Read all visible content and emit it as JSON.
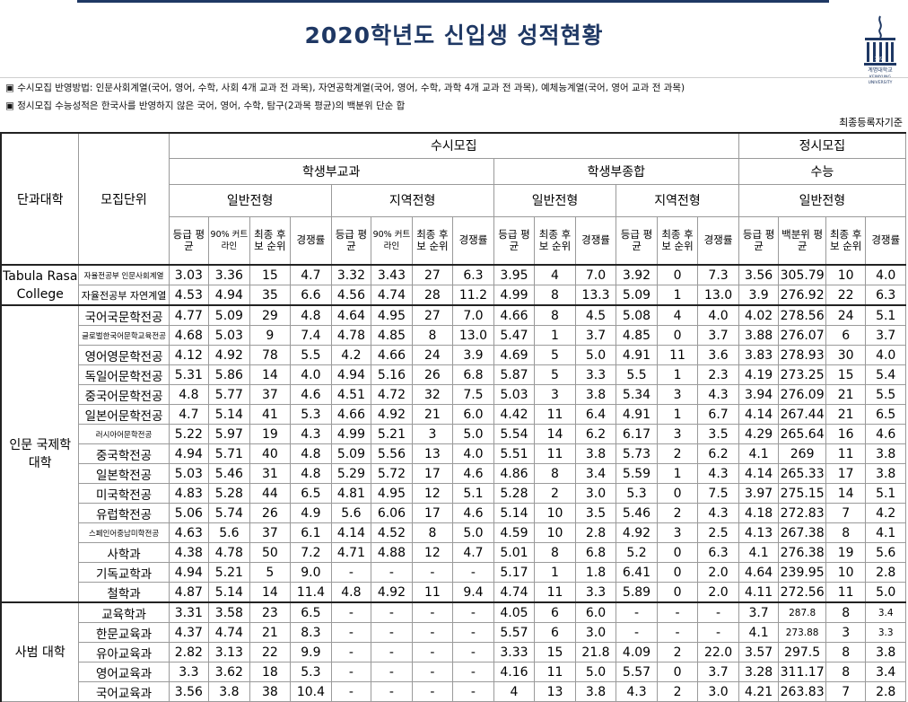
{
  "page": {
    "title": "2020학년도 신입생 성적현황",
    "logo_text": [
      "1899",
      "계명대학교",
      "KEIMYUNG",
      "UNIVERSITY"
    ],
    "notes": [
      "▣ 수시모집 반영방법: 인문사회계열(국어, 영어, 수학, 사회 4개 교과 전 과목), 자연공학계열(국어, 영어, 수학, 과학 4개 교과 전 과목), 예체능계열(국어, 영어 교과 전 과목)",
      "▣ 정시모집 수능성적은 한국사를 반영하지 않은 국어, 영어, 수학, 탐구(2과목 평균)의 백분위 단순 합"
    ],
    "basis": "최종등록자기준"
  },
  "header": {
    "college": "단과대학",
    "unit": "모집단위",
    "susi": "수시모집",
    "jeongsi": "정시모집",
    "hakbu_gyogwa": "학생부교과",
    "hakbu_jonghap": "학생부종합",
    "suneung": "수능",
    "ilban": "일반전형",
    "jiyeok": "지역전형",
    "grade_avg": "등급 평균",
    "cutline90": "90% 커트라인",
    "final_rank": "최종 후보 순위",
    "competition": "경쟁률",
    "percentile_avg": "백분위 평균"
  },
  "groups": [
    {
      "college": "Tabula Rasa College",
      "rows": [
        {
          "unit": "자율전공부 인문사회계열",
          "xs": true,
          "v": [
            "3.03",
            "3.36",
            "15",
            "4.7",
            "3.32",
            "3.43",
            "27",
            "6.3",
            "3.95",
            "4",
            "7.0",
            "3.92",
            "0",
            "7.3",
            "3.56",
            "305.79",
            "10",
            "4.0"
          ]
        },
        {
          "unit": "자율전공부 자연계열",
          "xs": false,
          "small": true,
          "v": [
            "4.53",
            "4.94",
            "35",
            "6.6",
            "4.56",
            "4.74",
            "28",
            "11.2",
            "4.99",
            "8",
            "13.3",
            "5.09",
            "1",
            "13.0",
            "3.9",
            "276.92",
            "22",
            "6.3"
          ]
        }
      ]
    },
    {
      "college": "인문 국제학 대학",
      "rows": [
        {
          "unit": "국어국문학전공",
          "v": [
            "4.77",
            "5.09",
            "29",
            "4.8",
            "4.64",
            "4.95",
            "27",
            "7.0",
            "4.66",
            "8",
            "4.5",
            "5.08",
            "4",
            "4.0",
            "4.02",
            "278.56",
            "24",
            "5.1"
          ]
        },
        {
          "unit": "글로벌한국어문학교육전공",
          "xs": true,
          "v": [
            "4.68",
            "5.03",
            "9",
            "7.4",
            "4.78",
            "4.85",
            "8",
            "13.0",
            "5.47",
            "1",
            "3.7",
            "4.85",
            "0",
            "3.7",
            "3.88",
            "276.07",
            "6",
            "3.7"
          ]
        },
        {
          "unit": "영어영문학전공",
          "v": [
            "4.12",
            "4.92",
            "78",
            "5.5",
            "4.2",
            "4.66",
            "24",
            "3.9",
            "4.69",
            "5",
            "5.0",
            "4.91",
            "11",
            "3.6",
            "3.83",
            "278.93",
            "30",
            "4.0"
          ]
        },
        {
          "unit": "독일어문학전공",
          "v": [
            "5.31",
            "5.86",
            "14",
            "4.0",
            "4.94",
            "5.16",
            "26",
            "6.8",
            "5.87",
            "5",
            "3.3",
            "5.5",
            "1",
            "2.3",
            "4.19",
            "273.25",
            "15",
            "5.4"
          ]
        },
        {
          "unit": "중국어문학전공",
          "v": [
            "4.8",
            "5.77",
            "37",
            "4.6",
            "4.51",
            "4.72",
            "32",
            "7.5",
            "5.03",
            "3",
            "3.8",
            "5.34",
            "3",
            "4.3",
            "3.94",
            "276.09",
            "21",
            "5.5"
          ]
        },
        {
          "unit": "일본어문학전공",
          "v": [
            "4.7",
            "5.14",
            "41",
            "5.3",
            "4.66",
            "4.92",
            "21",
            "6.0",
            "4.42",
            "11",
            "6.4",
            "4.91",
            "1",
            "6.7",
            "4.14",
            "267.44",
            "21",
            "6.5"
          ]
        },
        {
          "unit": "러시아어문학전공",
          "xs": true,
          "v": [
            "5.22",
            "5.97",
            "19",
            "4.3",
            "4.99",
            "5.21",
            "3",
            "5.0",
            "5.54",
            "14",
            "6.2",
            "6.17",
            "3",
            "3.5",
            "4.29",
            "265.64",
            "16",
            "4.6"
          ]
        },
        {
          "unit": "중국학전공",
          "v": [
            "4.94",
            "5.71",
            "40",
            "4.8",
            "5.09",
            "5.56",
            "13",
            "4.0",
            "5.51",
            "11",
            "3.8",
            "5.73",
            "2",
            "6.2",
            "4.1",
            "269",
            "11",
            "3.8"
          ]
        },
        {
          "unit": "일본학전공",
          "v": [
            "5.03",
            "5.46",
            "31",
            "4.8",
            "5.29",
            "5.72",
            "17",
            "4.6",
            "4.86",
            "8",
            "3.4",
            "5.59",
            "1",
            "4.3",
            "4.14",
            "265.33",
            "17",
            "3.8"
          ]
        },
        {
          "unit": "미국학전공",
          "v": [
            "4.83",
            "5.28",
            "44",
            "6.5",
            "4.81",
            "4.95",
            "12",
            "5.1",
            "5.28",
            "2",
            "3.0",
            "5.3",
            "0",
            "7.5",
            "3.97",
            "275.15",
            "14",
            "5.1"
          ]
        },
        {
          "unit": "유럽학전공",
          "v": [
            "5.06",
            "5.74",
            "26",
            "4.9",
            "5.6",
            "6.06",
            "17",
            "4.6",
            "5.14",
            "10",
            "3.5",
            "5.46",
            "2",
            "4.3",
            "4.18",
            "272.83",
            "7",
            "4.2"
          ]
        },
        {
          "unit": "스페인어중남미학전공",
          "xs": true,
          "v": [
            "4.63",
            "5.6",
            "37",
            "6.1",
            "4.14",
            "4.52",
            "8",
            "5.0",
            "4.59",
            "10",
            "2.8",
            "4.92",
            "3",
            "2.5",
            "4.13",
            "267.38",
            "8",
            "4.1"
          ]
        },
        {
          "unit": "사학과",
          "v": [
            "4.38",
            "4.78",
            "50",
            "7.2",
            "4.71",
            "4.88",
            "12",
            "4.7",
            "5.01",
            "8",
            "6.8",
            "5.2",
            "0",
            "6.3",
            "4.1",
            "276.38",
            "19",
            "5.6"
          ]
        },
        {
          "unit": "기독교학과",
          "v": [
            "4.94",
            "5.21",
            "5",
            "9.0",
            "-",
            "-",
            "-",
            "-",
            "5.17",
            "1",
            "1.8",
            "6.41",
            "0",
            "2.0",
            "4.64",
            "239.95",
            "10",
            "2.8"
          ]
        },
        {
          "unit": "철학과",
          "v": [
            "4.87",
            "5.14",
            "14",
            "11.4",
            "4.8",
            "4.92",
            "11",
            "9.4",
            "4.74",
            "11",
            "3.3",
            "5.89",
            "0",
            "2.0",
            "4.11",
            "272.56",
            "11",
            "5.0"
          ]
        }
      ]
    },
    {
      "college": "사범 대학",
      "rows": [
        {
          "unit": "교육학과",
          "v": [
            "3.31",
            "3.58",
            "23",
            "6.5",
            "-",
            "-",
            "-",
            "-",
            "4.05",
            "6",
            "6.0",
            "-",
            "-",
            "-",
            "3.7",
            "287.8",
            "8",
            "3.4"
          ],
          "sm": [
            15,
            17
          ]
        },
        {
          "unit": "한문교육과",
          "v": [
            "4.37",
            "4.74",
            "21",
            "8.3",
            "-",
            "-",
            "-",
            "-",
            "5.57",
            "6",
            "3.0",
            "-",
            "-",
            "-",
            "4.1",
            "273.88",
            "3",
            "3.3"
          ],
          "sm": [
            15,
            17
          ]
        },
        {
          "unit": "유아교육과",
          "v": [
            "2.82",
            "3.13",
            "22",
            "9.9",
            "-",
            "-",
            "-",
            "-",
            "3.33",
            "15",
            "21.8",
            "4.09",
            "2",
            "22.0",
            "3.57",
            "297.5",
            "8",
            "3.8"
          ]
        },
        {
          "unit": "영어교육과",
          "v": [
            "3.3",
            "3.62",
            "18",
            "5.3",
            "-",
            "-",
            "-",
            "-",
            "4.16",
            "11",
            "5.0",
            "5.57",
            "0",
            "3.7",
            "3.28",
            "311.17",
            "8",
            "3.4"
          ]
        },
        {
          "unit": "국어교육과",
          "v": [
            "3.56",
            "3.8",
            "38",
            "10.4",
            "-",
            "-",
            "-",
            "-",
            "4",
            "13",
            "3.8",
            "4.3",
            "2",
            "3.0",
            "4.21",
            "263.83",
            "7",
            "2.8"
          ]
        }
      ]
    }
  ]
}
